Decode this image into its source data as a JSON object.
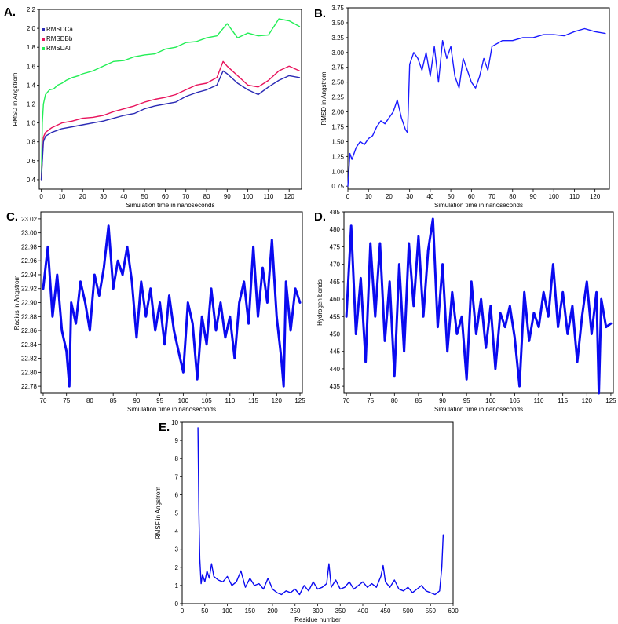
{
  "chart_data": [
    {
      "panel": "A.",
      "type": "line",
      "xlabel": "Simulation time in nanoseconds",
      "ylabel": "RMSD in Angstrom",
      "xlim": [
        -1,
        126
      ],
      "ylim": [
        0.3,
        2.2
      ],
      "xticks": [
        0,
        10,
        20,
        30,
        40,
        50,
        60,
        70,
        80,
        90,
        100,
        110,
        120
      ],
      "yticks": [
        0.4,
        0.6,
        0.8,
        1.0,
        1.2,
        1.4,
        1.6,
        1.8,
        2.0,
        2.2
      ],
      "ytick_labels": [
        "0.4",
        "0.6",
        "0.8",
        "1.0",
        "1.2",
        "1.4",
        "1.6",
        "1.8",
        "2.0",
        "2.2"
      ],
      "legend_position": "top-left",
      "series": [
        {
          "name": "RMSDAll",
          "color": "#22ee55",
          "x": [
            0,
            0.5,
            1,
            2,
            4,
            6,
            8,
            10,
            12,
            15,
            18,
            20,
            25,
            30,
            35,
            40,
            45,
            50,
            55,
            60,
            65,
            70,
            75,
            80,
            85,
            90,
            95,
            100,
            105,
            110,
            115,
            120,
            125
          ],
          "values": [
            0.4,
            1.0,
            1.2,
            1.3,
            1.35,
            1.36,
            1.4,
            1.42,
            1.45,
            1.48,
            1.5,
            1.52,
            1.55,
            1.6,
            1.65,
            1.66,
            1.7,
            1.72,
            1.73,
            1.78,
            1.8,
            1.85,
            1.86,
            1.9,
            1.92,
            2.05,
            1.9,
            1.95,
            1.92,
            1.93,
            2.1,
            2.08,
            2.02
          ]
        },
        {
          "name": "RMSDBb",
          "color": "#e8135c",
          "x": [
            0,
            1,
            2,
            5,
            10,
            15,
            20,
            25,
            30,
            35,
            40,
            45,
            50,
            55,
            60,
            65,
            70,
            75,
            80,
            85,
            88,
            90,
            95,
            100,
            105,
            110,
            115,
            120,
            125
          ],
          "values": [
            0.4,
            0.85,
            0.9,
            0.95,
            1.0,
            1.02,
            1.05,
            1.06,
            1.08,
            1.12,
            1.15,
            1.18,
            1.22,
            1.25,
            1.27,
            1.3,
            1.35,
            1.4,
            1.42,
            1.48,
            1.65,
            1.6,
            1.5,
            1.4,
            1.38,
            1.45,
            1.55,
            1.6,
            1.55
          ]
        },
        {
          "name": "RMSDCa",
          "color": "#2b2bb5",
          "x": [
            0,
            1,
            2,
            5,
            10,
            15,
            20,
            25,
            30,
            35,
            40,
            45,
            50,
            55,
            60,
            65,
            70,
            75,
            80,
            85,
            88,
            90,
            95,
            100,
            105,
            110,
            115,
            120,
            125
          ],
          "values": [
            0.4,
            0.8,
            0.86,
            0.9,
            0.94,
            0.96,
            0.98,
            1.0,
            1.02,
            1.05,
            1.08,
            1.1,
            1.15,
            1.18,
            1.2,
            1.22,
            1.28,
            1.32,
            1.35,
            1.4,
            1.55,
            1.52,
            1.42,
            1.35,
            1.3,
            1.38,
            1.45,
            1.5,
            1.48
          ]
        }
      ]
    },
    {
      "panel": "B.",
      "type": "line",
      "xlabel": "Simulation time in nanoseconds",
      "ylabel": "RMSD in Angstrom",
      "xlim": [
        0,
        127
      ],
      "ylim": [
        0.7,
        3.75
      ],
      "xticks": [
        0,
        10,
        20,
        30,
        40,
        50,
        60,
        70,
        80,
        90,
        100,
        110,
        120
      ],
      "yticks": [
        0.75,
        1.0,
        1.25,
        1.5,
        1.75,
        2.0,
        2.25,
        2.5,
        2.75,
        3.0,
        3.25,
        3.5,
        3.75
      ],
      "ytick_labels": [
        "0.75",
        "1.00",
        "1.25",
        "1.50",
        "1.75",
        "2.00",
        "2.25",
        "2.50",
        "2.75",
        "3.00",
        "3.25",
        "3.50",
        "3.75"
      ],
      "series": [
        {
          "color": "#1a1aff",
          "x": [
            0,
            1,
            2,
            4,
            6,
            8,
            10,
            12,
            14,
            16,
            18,
            20,
            22,
            24,
            26,
            28,
            29,
            30,
            32,
            34,
            36,
            38,
            40,
            42,
            44,
            46,
            48,
            50,
            52,
            54,
            56,
            58,
            60,
            62,
            64,
            66,
            68,
            70,
            75,
            80,
            85,
            90,
            95,
            100,
            105,
            110,
            115,
            120,
            125
          ],
          "values": [
            0.75,
            1.3,
            1.2,
            1.4,
            1.5,
            1.45,
            1.55,
            1.6,
            1.75,
            1.85,
            1.8,
            1.9,
            2.0,
            2.2,
            1.9,
            1.7,
            1.65,
            2.8,
            3.0,
            2.9,
            2.7,
            3.0,
            2.6,
            3.1,
            2.5,
            3.2,
            2.9,
            3.1,
            2.6,
            2.4,
            2.9,
            2.7,
            2.5,
            2.4,
            2.6,
            2.9,
            2.7,
            3.1,
            3.2,
            3.2,
            3.25,
            3.25,
            3.3,
            3.3,
            3.28,
            3.35,
            3.4,
            3.35,
            3.32
          ]
        }
      ]
    },
    {
      "panel": "C.",
      "type": "line",
      "xlabel": "Simulation time in nanoseconds",
      "ylabel": "Radius in Angstrom",
      "xlim": [
        69.5,
        125.5
      ],
      "ylim": [
        22.77,
        23.03
      ],
      "xticks": [
        70,
        75,
        80,
        85,
        90,
        95,
        100,
        105,
        110,
        115,
        120,
        125
      ],
      "yticks": [
        22.78,
        22.8,
        22.82,
        22.84,
        22.86,
        22.88,
        22.9,
        22.92,
        22.94,
        22.96,
        22.98,
        23.0,
        23.02
      ],
      "ytick_labels": [
        "22.78",
        "22.80",
        "22.82",
        "22.84",
        "22.86",
        "22.88",
        "22.90",
        "22.92",
        "22.94",
        "22.96",
        "22.98",
        "23.00",
        "23.02"
      ],
      "series": [
        {
          "color": "#0a0af0",
          "x": [
            70,
            71,
            72,
            73,
            74,
            75,
            75.6,
            76,
            77,
            78,
            79,
            80,
            81,
            82,
            83,
            84,
            85,
            86,
            87,
            88,
            89,
            90,
            91,
            92,
            93,
            94,
            95,
            96,
            97,
            98,
            99,
            100,
            101,
            102,
            103,
            104,
            105,
            106,
            107,
            108,
            109,
            110,
            111,
            112,
            113,
            114,
            115,
            116,
            117,
            118,
            119,
            120,
            121,
            121.5,
            122,
            123,
            124,
            125
          ],
          "values": [
            22.92,
            22.98,
            22.88,
            22.94,
            22.86,
            22.83,
            22.78,
            22.9,
            22.87,
            22.93,
            22.9,
            22.86,
            22.94,
            22.91,
            22.95,
            23.01,
            22.92,
            22.96,
            22.94,
            22.98,
            22.93,
            22.85,
            22.93,
            22.88,
            22.92,
            22.86,
            22.9,
            22.84,
            22.91,
            22.86,
            22.83,
            22.8,
            22.9,
            22.87,
            22.79,
            22.88,
            22.84,
            22.92,
            22.86,
            22.9,
            22.85,
            22.88,
            22.82,
            22.9,
            22.93,
            22.87,
            22.98,
            22.88,
            22.95,
            22.9,
            22.99,
            22.88,
            22.82,
            22.78,
            22.93,
            22.86,
            22.92,
            22.9
          ]
        }
      ]
    },
    {
      "panel": "D.",
      "type": "line",
      "xlabel": "Simulation time in nanoseconds",
      "ylabel": "Hydrogen bonds",
      "xlim": [
        69.5,
        125.5
      ],
      "ylim": [
        433,
        485
      ],
      "xticks": [
        70,
        75,
        80,
        85,
        90,
        95,
        100,
        105,
        110,
        115,
        120,
        125
      ],
      "yticks": [
        435,
        440,
        445,
        450,
        455,
        460,
        465,
        470,
        475,
        480,
        485
      ],
      "ytick_labels": [
        "435",
        "440",
        "445",
        "450",
        "455",
        "460",
        "465",
        "470",
        "475",
        "480",
        "485"
      ],
      "series": [
        {
          "color": "#0a0af0",
          "x": [
            70,
            71,
            72,
            73,
            74,
            75,
            76,
            77,
            78,
            79,
            80,
            81,
            82,
            83,
            84,
            85,
            86,
            87,
            88,
            89,
            90,
            91,
            92,
            93,
            94,
            95,
            96,
            97,
            98,
            99,
            100,
            101,
            102,
            103,
            104,
            105,
            106,
            107,
            108,
            109,
            110,
            111,
            112,
            113,
            114,
            115,
            116,
            117,
            118,
            119,
            120,
            121,
            122,
            122.5,
            123,
            124,
            125
          ],
          "values": [
            455,
            481,
            450,
            466,
            442,
            476,
            455,
            476,
            448,
            465,
            438,
            470,
            445,
            476,
            458,
            478,
            455,
            474,
            483,
            452,
            470,
            445,
            462,
            450,
            455,
            437,
            465,
            450,
            460,
            446,
            458,
            440,
            456,
            452,
            458,
            449,
            435,
            462,
            448,
            456,
            452,
            462,
            455,
            470,
            452,
            462,
            450,
            458,
            442,
            455,
            465,
            450,
            462,
            433,
            460,
            452,
            453
          ]
        }
      ]
    },
    {
      "panel": "E.",
      "type": "line",
      "xlabel": "Residue number",
      "ylabel": "RMSF in Angstrom",
      "xlim": [
        0,
        600
      ],
      "ylim": [
        0,
        10
      ],
      "xticks": [
        0,
        50,
        100,
        150,
        200,
        250,
        300,
        350,
        400,
        450,
        500,
        550,
        600
      ],
      "yticks": [
        0,
        1,
        2,
        3,
        4,
        5,
        6,
        7,
        8,
        9,
        10
      ],
      "ytick_labels": [
        "0",
        "1",
        "2",
        "3",
        "4",
        "5",
        "6",
        "7",
        "8",
        "9",
        "10"
      ],
      "series": [
        {
          "color": "#0a0af0",
          "x": [
            35,
            37,
            39,
            42,
            45,
            50,
            55,
            60,
            65,
            70,
            80,
            90,
            100,
            110,
            120,
            130,
            140,
            150,
            160,
            170,
            180,
            190,
            200,
            210,
            220,
            230,
            240,
            250,
            260,
            270,
            280,
            290,
            300,
            310,
            320,
            325,
            330,
            340,
            350,
            360,
            370,
            380,
            390,
            400,
            410,
            420,
            430,
            440,
            445,
            450,
            460,
            470,
            480,
            490,
            500,
            510,
            520,
            530,
            540,
            550,
            560,
            570,
            575,
            578
          ],
          "values": [
            9.7,
            5.0,
            2.5,
            1.1,
            1.6,
            1.2,
            1.8,
            1.4,
            2.2,
            1.5,
            1.3,
            1.2,
            1.5,
            1.0,
            1.2,
            1.8,
            0.9,
            1.4,
            1.0,
            1.1,
            0.8,
            1.4,
            0.8,
            0.6,
            0.5,
            0.7,
            0.6,
            0.8,
            0.5,
            1.0,
            0.7,
            1.2,
            0.8,
            0.9,
            1.1,
            2.2,
            0.9,
            1.3,
            0.8,
            0.9,
            1.2,
            0.8,
            1.0,
            1.2,
            0.9,
            1.1,
            0.9,
            1.5,
            2.1,
            1.2,
            0.9,
            1.3,
            0.8,
            0.7,
            0.9,
            0.6,
            0.8,
            1.0,
            0.7,
            0.6,
            0.5,
            0.7,
            2.0,
            3.8
          ]
        }
      ]
    }
  ]
}
